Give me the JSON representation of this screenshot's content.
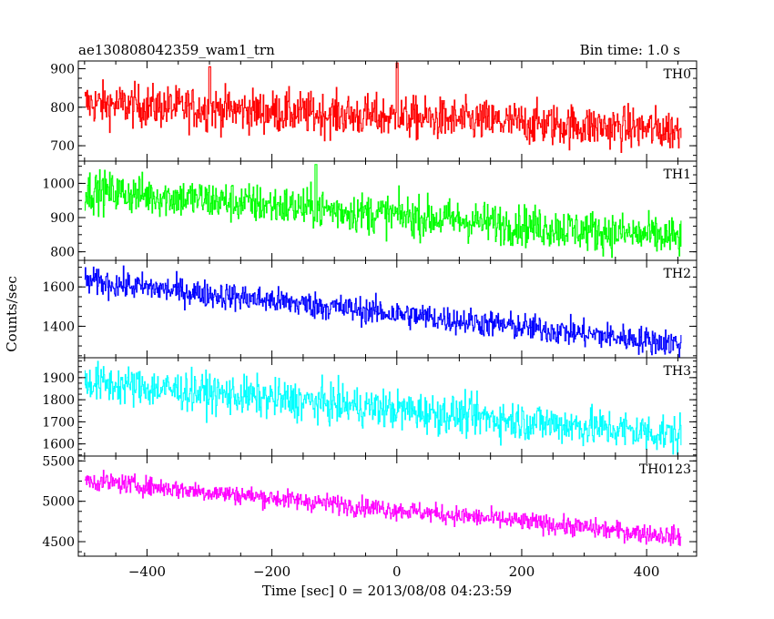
{
  "header": {
    "title": "ae130808042359_wam1_trn",
    "bin_time": "Bin time: 1.0 s"
  },
  "axes": {
    "ylabel": "Counts/sec",
    "xlabel": "Time [sec] 0 = 2013/08/08 04:23:59"
  },
  "chart_data": {
    "type": "line",
    "title": "ae130808042359_wam1_trn",
    "xlabel": "Time [sec] 0 = 2013/08/08 04:23:59",
    "ylabel": "Counts/sec",
    "xlim": [
      -510,
      480
    ],
    "xticks": [
      -400,
      -200,
      0,
      200,
      400
    ],
    "bin_time_s": 1.0,
    "grid": false,
    "panels": [
      {
        "name": "TH0",
        "color": "#ff0000",
        "ylim": [
          660,
          920
        ],
        "yticks": [
          700,
          800,
          900
        ],
        "x_start": -500,
        "x_end": 455,
        "trend": {
          "start": 810,
          "end": 740
        },
        "noise_sigma": 28,
        "features": [
          {
            "x": 0,
            "y": 915
          },
          {
            "x": -300,
            "y": 905
          }
        ]
      },
      {
        "name": "TH1",
        "color": "#00ff00",
        "ylim": [
          775,
          1065
        ],
        "yticks": [
          800,
          900,
          1000
        ],
        "x_start": -500,
        "x_end": 455,
        "trend": {
          "start": 980,
          "end": 840
        },
        "noise_sigma": 30,
        "features": [
          {
            "x": -130,
            "y": 1055
          }
        ]
      },
      {
        "name": "TH2",
        "color": "#0000ff",
        "ylim": [
          1240,
          1735
        ],
        "yticks": [
          1400,
          1600
        ],
        "x_start": -500,
        "x_end": 455,
        "trend": {
          "start": 1630,
          "end": 1310
        },
        "noise_sigma": 35,
        "features": []
      },
      {
        "name": "TH3",
        "color": "#00ffff",
        "ylim": [
          1545,
          1990
        ],
        "yticks": [
          1600,
          1700,
          1800,
          1900
        ],
        "x_start": -500,
        "x_end": 455,
        "trend": {
          "start": 1880,
          "end": 1640
        },
        "noise_sigma": 45,
        "features": []
      },
      {
        "name": "TH0123",
        "color": "#ff00ff",
        "ylim": [
          4320,
          5560
        ],
        "yticks": [
          4500,
          5000,
          5500
        ],
        "x_start": -500,
        "x_end": 455,
        "trend": {
          "start": 5260,
          "end": 4560
        },
        "noise_sigma": 60,
        "features": []
      }
    ]
  }
}
